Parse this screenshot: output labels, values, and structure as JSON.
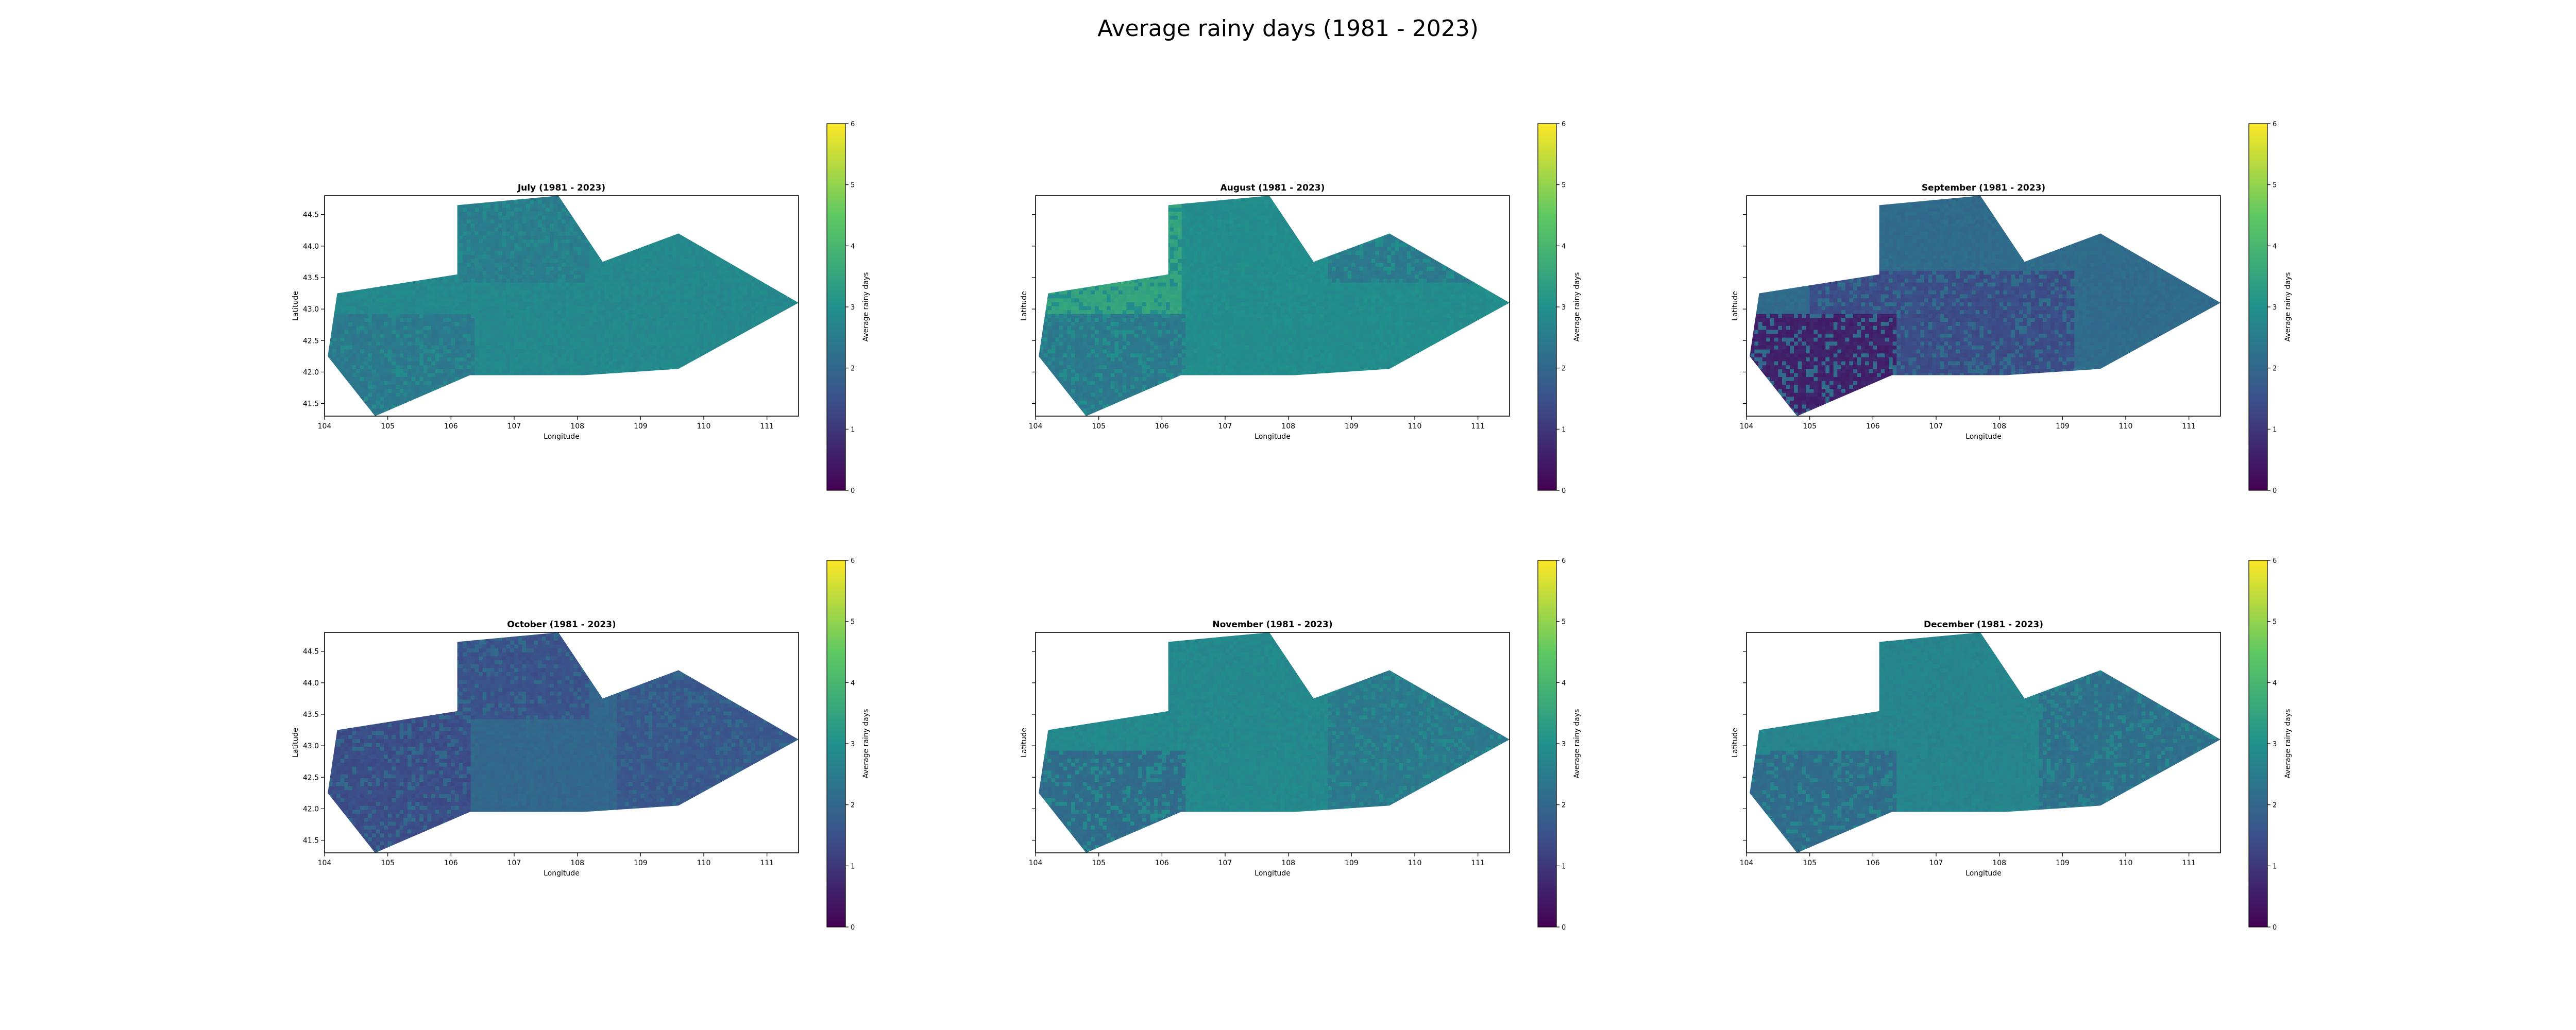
{
  "figure": {
    "title": "Average rainy days (1981 - 2023)"
  },
  "colorbar": {
    "label": "Average rainy days",
    "min": 0,
    "max": 6,
    "ticks": [
      0,
      1,
      2,
      3,
      4,
      5,
      6
    ],
    "colormap": [
      "#440154",
      "#3b528b",
      "#21918c",
      "#5ec962",
      "#fde725"
    ]
  },
  "axes": {
    "xlabel": "Longitude",
    "ylabel": "Latitude",
    "xlim": [
      104.0,
      111.5
    ],
    "ylim": [
      41.3,
      44.8
    ],
    "xticks": [
      104,
      105,
      106,
      107,
      108,
      109,
      110,
      111
    ],
    "yticks": [
      41.5,
      42.0,
      42.5,
      43.0,
      43.5,
      44.0,
      44.5
    ],
    "ytick_labels": [
      "41.5",
      "42.0",
      "42.5",
      "43.0",
      "43.5",
      "44.0",
      "44.5"
    ]
  },
  "region_outline_lonlat": [
    [
      104.05,
      42.25
    ],
    [
      104.2,
      43.25
    ],
    [
      106.1,
      43.55
    ],
    [
      106.1,
      44.65
    ],
    [
      107.7,
      44.8
    ],
    [
      108.4,
      43.75
    ],
    [
      109.6,
      44.2
    ],
    [
      111.5,
      43.1
    ],
    [
      109.6,
      42.05
    ],
    [
      108.1,
      41.95
    ],
    [
      106.3,
      41.95
    ],
    [
      104.8,
      41.3
    ]
  ],
  "chart_data": [
    {
      "type": "heatmap",
      "title": "July (1981 - 2023)",
      "xlabel": "Longitude",
      "ylabel": "Latitude",
      "xlim": [
        104.0,
        111.5
      ],
      "ylim": [
        41.3,
        44.8
      ],
      "colorbar_range": [
        0,
        6
      ],
      "base_value": 2.8,
      "zones": [
        {
          "region": "south-west",
          "value": 2.4
        },
        {
          "region": "north-center",
          "value": 2.5
        },
        {
          "region": "east",
          "value": 2.8
        }
      ]
    },
    {
      "type": "heatmap",
      "title": "August (1981 - 2023)",
      "xlabel": "Longitude",
      "ylabel": "Latitude",
      "xlim": [
        104.0,
        111.5
      ],
      "ylim": [
        41.3,
        44.8
      ],
      "colorbar_range": [
        0,
        6
      ],
      "base_value": 2.9,
      "zones": [
        {
          "region": "west",
          "value": 3.5
        },
        {
          "region": "south-west",
          "value": 2.4
        },
        {
          "region": "north-east",
          "value": 2.4
        }
      ]
    },
    {
      "type": "heatmap",
      "title": "September (1981 - 2023)",
      "xlabel": "Longitude",
      "ylabel": "Latitude",
      "xlim": [
        104.0,
        111.5
      ],
      "ylim": [
        41.3,
        44.8
      ],
      "colorbar_range": [
        0,
        6
      ],
      "base_value": 2.1,
      "zones": [
        {
          "region": "center",
          "value": 1.4
        },
        {
          "region": "south-west",
          "value": 0.6
        }
      ]
    },
    {
      "type": "heatmap",
      "title": "October (1981 - 2023)",
      "xlabel": "Longitude",
      "ylabel": "Latitude",
      "xlim": [
        104.0,
        111.5
      ],
      "ylim": [
        41.3,
        44.8
      ],
      "colorbar_range": [
        0,
        6
      ],
      "base_value": 2.0,
      "zones": [
        {
          "region": "west",
          "value": 1.4
        },
        {
          "region": "north-center",
          "value": 1.5
        },
        {
          "region": "east",
          "value": 1.6
        }
      ]
    },
    {
      "type": "heatmap",
      "title": "November (1981 - 2023)",
      "xlabel": "Longitude",
      "ylabel": "Latitude",
      "xlim": [
        104.0,
        111.5
      ],
      "ylim": [
        41.3,
        44.8
      ],
      "colorbar_range": [
        0,
        6
      ],
      "base_value": 2.8,
      "zones": [
        {
          "region": "south-west",
          "value": 2.1
        },
        {
          "region": "east",
          "value": 2.4
        }
      ]
    },
    {
      "type": "heatmap",
      "title": "December (1981 - 2023)",
      "xlabel": "Longitude",
      "ylabel": "Latitude",
      "xlim": [
        104.0,
        111.5
      ],
      "ylim": [
        41.3,
        44.8
      ],
      "colorbar_range": [
        0,
        6
      ],
      "base_value": 2.7,
      "zones": [
        {
          "region": "south-west",
          "value": 2.1
        },
        {
          "region": "east",
          "value": 2.2
        }
      ]
    }
  ]
}
